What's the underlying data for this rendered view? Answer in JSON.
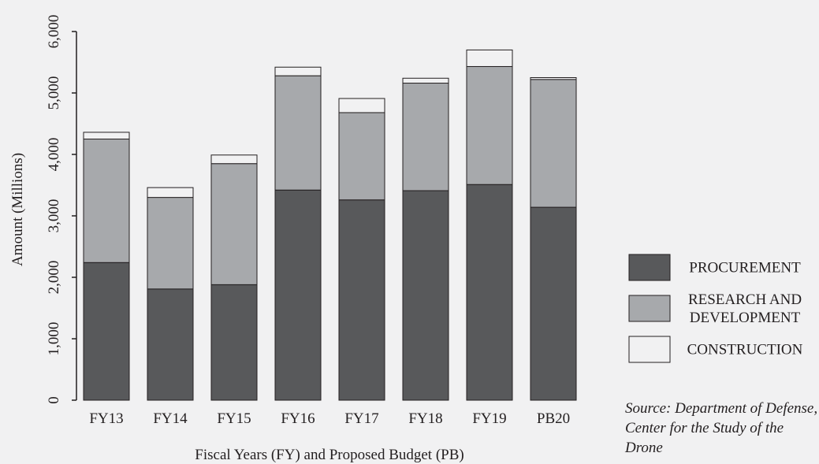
{
  "chart_data": {
    "type": "bar",
    "stacked": true,
    "title": "",
    "xlabel": "Fiscal Years (FY) and Proposed Budget (PB)",
    "ylabel": "Amount (Millions)",
    "ylim": [
      0,
      6000
    ],
    "yticks": [
      0,
      1000,
      2000,
      3000,
      4000,
      5000,
      6000
    ],
    "ytick_labels": [
      "0",
      "1,000",
      "2,000",
      "3,000",
      "4,000",
      "5,000",
      "6,000"
    ],
    "grid": false,
    "legend_position": "right",
    "categories": [
      "FY13",
      "FY14",
      "FY15",
      "FY16",
      "FY17",
      "FY18",
      "FY19",
      "PB20"
    ],
    "series": [
      {
        "name": "PROCUREMENT",
        "color": "#58595b",
        "values": [
          2240,
          1810,
          1880,
          3420,
          3260,
          3410,
          3510,
          3140
        ]
      },
      {
        "name": "RESEARCH AND DEVELOPMENT",
        "label_lines": [
          "RESEARCH AND",
          "DEVELOPMENT"
        ],
        "color": "#a7a9ac",
        "values": [
          2010,
          1490,
          1970,
          1860,
          1420,
          1750,
          1920,
          2080
        ]
      },
      {
        "name": "CONSTRUCTION",
        "color": "#f1f1f2",
        "values": [
          110,
          160,
          140,
          140,
          230,
          80,
          270,
          30
        ]
      }
    ]
  },
  "source_note": "Source: Department of Defense, Center for the Study of the Drone"
}
